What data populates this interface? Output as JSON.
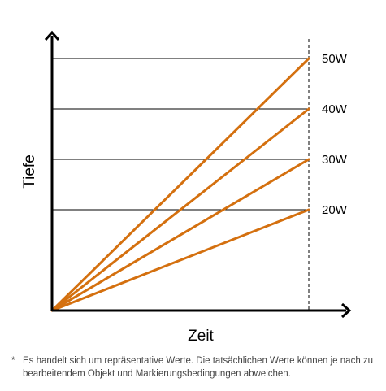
{
  "chart_data": {
    "type": "line",
    "title": "",
    "xlabel": "Zeit",
    "ylabel": "Tiefe",
    "x": [
      0,
      1
    ],
    "ylim": [
      0,
      50
    ],
    "series": [
      {
        "name": "20W",
        "values": [
          0,
          20
        ]
      },
      {
        "name": "30W",
        "values": [
          0,
          30
        ]
      },
      {
        "name": "40W",
        "values": [
          0,
          40
        ]
      },
      {
        "name": "50W",
        "values": [
          0,
          50
        ]
      }
    ],
    "gridlines_y": [
      20,
      30,
      40,
      50
    ],
    "grid": true,
    "legend": "labels at right end of each line",
    "colors": {
      "series": "#d4700f",
      "grid": "#000000",
      "axis": "#000000"
    }
  },
  "footnote": {
    "marker": "*",
    "text": "Es handelt sich um repräsentative Werte. Die tatsächlichen Werte können je nach zu bearbeitendem Objekt und Markierungsbedingungen abweichen."
  }
}
